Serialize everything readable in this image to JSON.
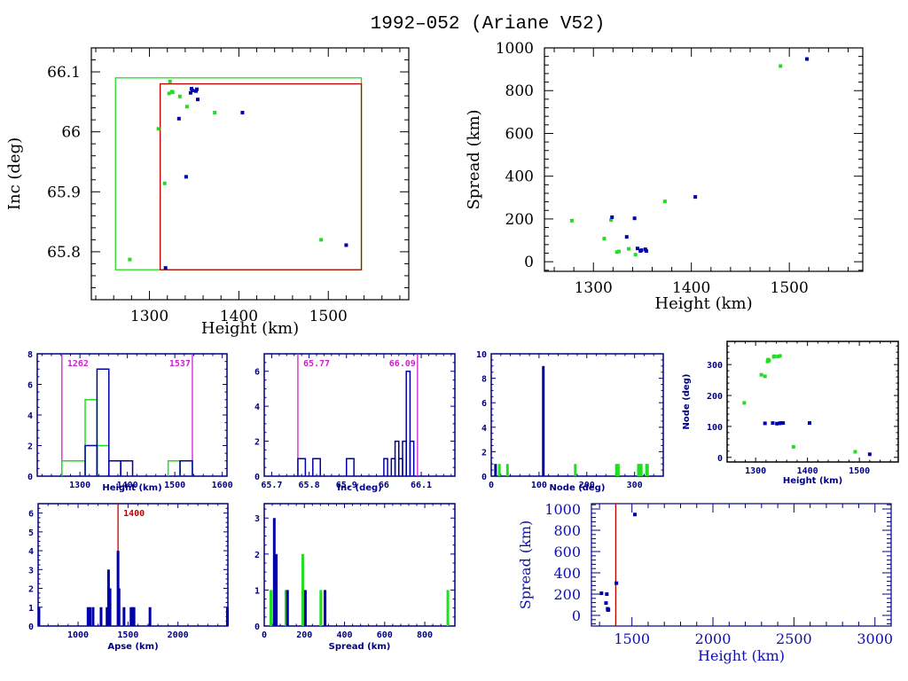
{
  "title": "1992–052 (Ariane V52)",
  "colors": {
    "green": "#22dd22",
    "blue": "#0000aa",
    "red": "#c00000",
    "magenta": "#cc22cc",
    "axis_black": "#000000",
    "axis_navy": "#000080"
  },
  "chart_data": [
    {
      "id": "inc-vs-height",
      "type": "scatter",
      "title": "",
      "xlabel": "Height (km)",
      "ylabel": "Inc (deg)",
      "xlim": [
        1235,
        1590
      ],
      "ylim": [
        65.72,
        66.14
      ],
      "xticks": [
        "1300",
        "1400",
        "1500"
      ],
      "xtick_values": [
        1300,
        1400,
        1500
      ],
      "yticks": [
        "65.8",
        "65.9",
        "66",
        "66.1"
      ],
      "ytick_values": [
        65.8,
        65.9,
        66.0,
        66.1
      ],
      "boxes": [
        {
          "name": "green-box",
          "color": "green",
          "x": [
            1262,
            1537
          ],
          "y": [
            65.77,
            66.09
          ]
        },
        {
          "name": "red-box",
          "color": "red",
          "x": [
            1312,
            1537
          ],
          "y": [
            65.77,
            66.08
          ]
        }
      ],
      "series": [
        {
          "name": "green",
          "color": "green",
          "points": [
            [
              1278,
              65.787
            ],
            [
              1310,
              66.005
            ],
            [
              1317,
              65.914
            ],
            [
              1322,
              66.064
            ],
            [
              1323,
              66.084
            ],
            [
              1325,
              66.067
            ],
            [
              1326,
              66.066
            ],
            [
              1334,
              66.059
            ],
            [
              1342,
              66.042
            ],
            [
              1373,
              66.032
            ],
            [
              1492,
              65.82
            ]
          ]
        },
        {
          "name": "blue",
          "color": "blue",
          "points": [
            [
              1318,
              65.773
            ],
            [
              1333,
              66.022
            ],
            [
              1341,
              65.925
            ],
            [
              1346,
              66.065
            ],
            [
              1347,
              66.072
            ],
            [
              1348,
              66.069
            ],
            [
              1352,
              66.068
            ],
            [
              1353,
              66.071
            ],
            [
              1354,
              66.054
            ],
            [
              1404,
              66.032
            ],
            [
              1520,
              65.811
            ]
          ]
        }
      ]
    },
    {
      "id": "spread-vs-height",
      "type": "scatter",
      "xlabel": "Height (km)",
      "ylabel": "Spread (km)",
      "xlim": [
        1250,
        1575
      ],
      "ylim": [
        -45,
        1000
      ],
      "xticks": [
        "1300",
        "1400",
        "1500"
      ],
      "xtick_values": [
        1300,
        1400,
        1500
      ],
      "yticks": [
        "0",
        "200",
        "400",
        "600",
        "800",
        "1000"
      ],
      "ytick_values": [
        0,
        200,
        400,
        600,
        800,
        1000
      ],
      "series": [
        {
          "name": "green",
          "color": "green",
          "points": [
            [
              1278,
              192
            ],
            [
              1311,
              108
            ],
            [
              1318,
              195
            ],
            [
              1324,
              45
            ],
            [
              1326,
              48
            ],
            [
              1336,
              60
            ],
            [
              1343,
              33
            ],
            [
              1373,
              282
            ],
            [
              1491,
              915
            ]
          ]
        },
        {
          "name": "blue",
          "color": "blue",
          "points": [
            [
              1319,
              208
            ],
            [
              1334,
              116
            ],
            [
              1342,
              203
            ],
            [
              1345,
              62
            ],
            [
              1348,
              50
            ],
            [
              1349,
              54
            ],
            [
              1353,
              58
            ],
            [
              1354,
              50
            ],
            [
              1404,
              303
            ],
            [
              1518,
              948
            ]
          ]
        }
      ]
    },
    {
      "id": "height-histogram",
      "type": "bar",
      "xlabel": "Height (km)",
      "ylabel": "",
      "xlim": [
        1210,
        1610
      ],
      "ylim": [
        0,
        8
      ],
      "xticks": [
        "1300",
        "1400",
        "1500",
        "1600"
      ],
      "xtick_values": [
        1300,
        1400,
        1500,
        1600
      ],
      "yticks": [
        "0",
        "2",
        "4",
        "6",
        "8"
      ],
      "ytick_values": [
        0,
        2,
        4,
        6,
        8
      ],
      "vlines": [
        {
          "value": 1262,
          "label": "1262",
          "color": "magenta"
        },
        {
          "value": 1537,
          "label": "1537",
          "color": "magenta"
        }
      ],
      "series": [
        {
          "name": "green",
          "color": "green",
          "bins": [
            [
              1262,
              1311,
              1
            ],
            [
              1311,
              1336,
              5
            ],
            [
              1336,
              1361,
              2
            ],
            [
              1361,
              1386,
              1
            ],
            [
              1486,
              1511,
              1
            ],
            [
              1511,
              1537,
              1
            ]
          ]
        },
        {
          "name": "blue",
          "color": "blue",
          "bins": [
            [
              1311,
              1336,
              2
            ],
            [
              1336,
              1361,
              7
            ],
            [
              1361,
              1386,
              1
            ],
            [
              1386,
              1411,
              1
            ],
            [
              1511,
              1537,
              1
            ]
          ]
        }
      ]
    },
    {
      "id": "inc-histogram",
      "type": "bar",
      "xlabel": "Inc (deg)",
      "xlim": [
        65.68,
        66.19
      ],
      "ylim": [
        0,
        7
      ],
      "xticks": [
        "65.7",
        "65.8",
        "65.9",
        "66",
        "66.1"
      ],
      "xtick_values": [
        65.7,
        65.8,
        65.9,
        66.0,
        66.1
      ],
      "yticks": [
        "0",
        "2",
        "4",
        "6"
      ],
      "ytick_values": [
        0,
        2,
        4,
        6
      ],
      "vlines": [
        {
          "value": 65.77,
          "label": "65.77",
          "color": "magenta"
        },
        {
          "value": 66.09,
          "label": "66.09",
          "color": "magenta"
        }
      ],
      "series": [
        {
          "name": "blue",
          "color": "blue",
          "bins": [
            [
              65.77,
              65.79,
              1
            ],
            [
              65.81,
              65.83,
              1
            ],
            [
              65.9,
              65.92,
              1
            ],
            [
              66.0,
              66.01,
              1
            ],
            [
              66.02,
              66.03,
              1
            ],
            [
              66.03,
              66.04,
              2
            ],
            [
              66.04,
              66.05,
              1
            ],
            [
              66.05,
              66.06,
              2
            ],
            [
              66.06,
              66.07,
              6
            ],
            [
              66.07,
              66.08,
              2
            ]
          ]
        }
      ]
    },
    {
      "id": "node-histogram",
      "type": "bar",
      "xlabel": "Node (deg)",
      "xlim": [
        0,
        360
      ],
      "ylim": [
        0,
        10
      ],
      "xticks": [
        "0",
        "100",
        "200",
        "300"
      ],
      "xtick_values": [
        0,
        100,
        200,
        300
      ],
      "yticks": [
        "0",
        "2",
        "4",
        "6",
        "8",
        "10"
      ],
      "ytick_values": [
        0,
        2,
        4,
        6,
        8,
        10
      ],
      "series": [
        {
          "name": "green",
          "color": "green",
          "values": [
            [
              17,
              1
            ],
            [
              34,
              1
            ],
            [
              176,
              1
            ],
            [
              262,
              1
            ],
            [
              266,
              1
            ],
            [
              308,
              1
            ],
            [
              311,
              1
            ],
            [
              314,
              1
            ],
            [
              325,
              1
            ],
            [
              327,
              1
            ]
          ]
        },
        {
          "name": "blue",
          "color": "blue",
          "values": [
            [
              109,
              9
            ],
            [
              9,
              1
            ]
          ]
        }
      ]
    },
    {
      "id": "node-vs-height",
      "type": "scatter",
      "xlabel": "Height (km)",
      "ylabel": "Node (deg)",
      "xlim": [
        1245,
        1575
      ],
      "ylim": [
        -15,
        375
      ],
      "xticks": [
        "1300",
        "1400",
        "1500"
      ],
      "xtick_values": [
        1300,
        1400,
        1500
      ],
      "yticks": [
        "0",
        "100",
        "200",
        "300"
      ],
      "ytick_values": [
        0,
        100,
        200,
        300
      ],
      "series": [
        {
          "name": "green",
          "color": "green",
          "points": [
            [
              1278,
              176
            ],
            [
              1311,
              267
            ],
            [
              1318,
              262
            ],
            [
              1323,
              310
            ],
            [
              1324,
              316
            ],
            [
              1326,
              313
            ],
            [
              1335,
              325
            ],
            [
              1336,
              327
            ],
            [
              1343,
              326
            ],
            [
              1347,
              328
            ],
            [
              1373,
              34
            ],
            [
              1492,
              18
            ]
          ]
        },
        {
          "name": "blue",
          "color": "blue",
          "points": [
            [
              1318,
              110
            ],
            [
              1333,
              111
            ],
            [
              1341,
              109
            ],
            [
              1346,
              110
            ],
            [
              1349,
              111
            ],
            [
              1353,
              111
            ],
            [
              1404,
              111
            ],
            [
              1520,
              10
            ]
          ]
        }
      ]
    },
    {
      "id": "apse-histogram",
      "type": "bar",
      "xlabel": "Apse (km)",
      "xlim": [
        600,
        2500
      ],
      "ylim": [
        0,
        6.5
      ],
      "xticks": [
        "1000",
        "1500",
        "2000"
      ],
      "xtick_values": [
        1000,
        1500,
        2000
      ],
      "yticks": [
        "0",
        "1",
        "2",
        "3",
        "4",
        "5",
        "6"
      ],
      "ytick_values": [
        0,
        1,
        2,
        3,
        4,
        5,
        6
      ],
      "vlines": [
        {
          "value": 1400,
          "label": "1400",
          "color": "red"
        }
      ],
      "series": [
        {
          "name": "blue",
          "color": "blue",
          "values": [
            [
              608,
              1
            ],
            [
              1100,
              1
            ],
            [
              1120,
              1
            ],
            [
              1150,
              1
            ],
            [
              1230,
              1
            ],
            [
              1290,
              1
            ],
            [
              1305,
              3
            ],
            [
              1320,
              2
            ],
            [
              1400,
              4
            ],
            [
              1410,
              2
            ],
            [
              1460,
              1
            ],
            [
              1530,
              1
            ],
            [
              1545,
              1
            ],
            [
              1560,
              1
            ],
            [
              1720,
              1
            ],
            [
              2495,
              1
            ]
          ]
        }
      ]
    },
    {
      "id": "spread-histogram",
      "type": "bar",
      "xlabel": "Spread (km)",
      "xlim": [
        0,
        950
      ],
      "ylim": [
        0,
        3.4
      ],
      "xticks": [
        "0",
        "200",
        "400",
        "600",
        "800"
      ],
      "xtick_values": [
        0,
        200,
        400,
        600,
        800
      ],
      "yticks": [
        "0",
        "1",
        "2",
        "3"
      ],
      "ytick_values": [
        0,
        1,
        2,
        3
      ],
      "series": [
        {
          "name": "green",
          "color": "green",
          "values": [
            [
              33,
              1
            ],
            [
              48,
              1
            ],
            [
              108,
              1
            ],
            [
              192,
              2
            ],
            [
              282,
              1
            ],
            [
              915,
              1
            ]
          ]
        },
        {
          "name": "blue",
          "color": "blue",
          "values": [
            [
              50,
              3
            ],
            [
              60,
              2
            ],
            [
              116,
              1
            ],
            [
              205,
              1
            ],
            [
              303,
              1
            ]
          ]
        }
      ]
    },
    {
      "id": "spread-vs-height-wide",
      "type": "scatter",
      "xlabel": "Height (km)",
      "ylabel": "Spread (km)",
      "xlim": [
        1250,
        3100
      ],
      "ylim": [
        -100,
        1050
      ],
      "xticks": [
        "1500",
        "2000",
        "2500",
        "3000"
      ],
      "xtick_values": [
        1500,
        2000,
        2500,
        3000
      ],
      "yticks": [
        "0",
        "200",
        "400",
        "600",
        "800",
        "1000"
      ],
      "ytick_values": [
        0,
        200,
        400,
        600,
        800,
        1000
      ],
      "vlines": [
        {
          "value": 1400,
          "label": "",
          "color": "red"
        }
      ],
      "series": [
        {
          "name": "blue",
          "color": "blue",
          "points": [
            [
              1312,
              208
            ],
            [
              1340,
              116
            ],
            [
              1345,
              200
            ],
            [
              1350,
              62
            ],
            [
              1352,
              50
            ],
            [
              1355,
              54
            ],
            [
              1404,
              303
            ],
            [
              1518,
              948
            ]
          ]
        }
      ]
    }
  ]
}
